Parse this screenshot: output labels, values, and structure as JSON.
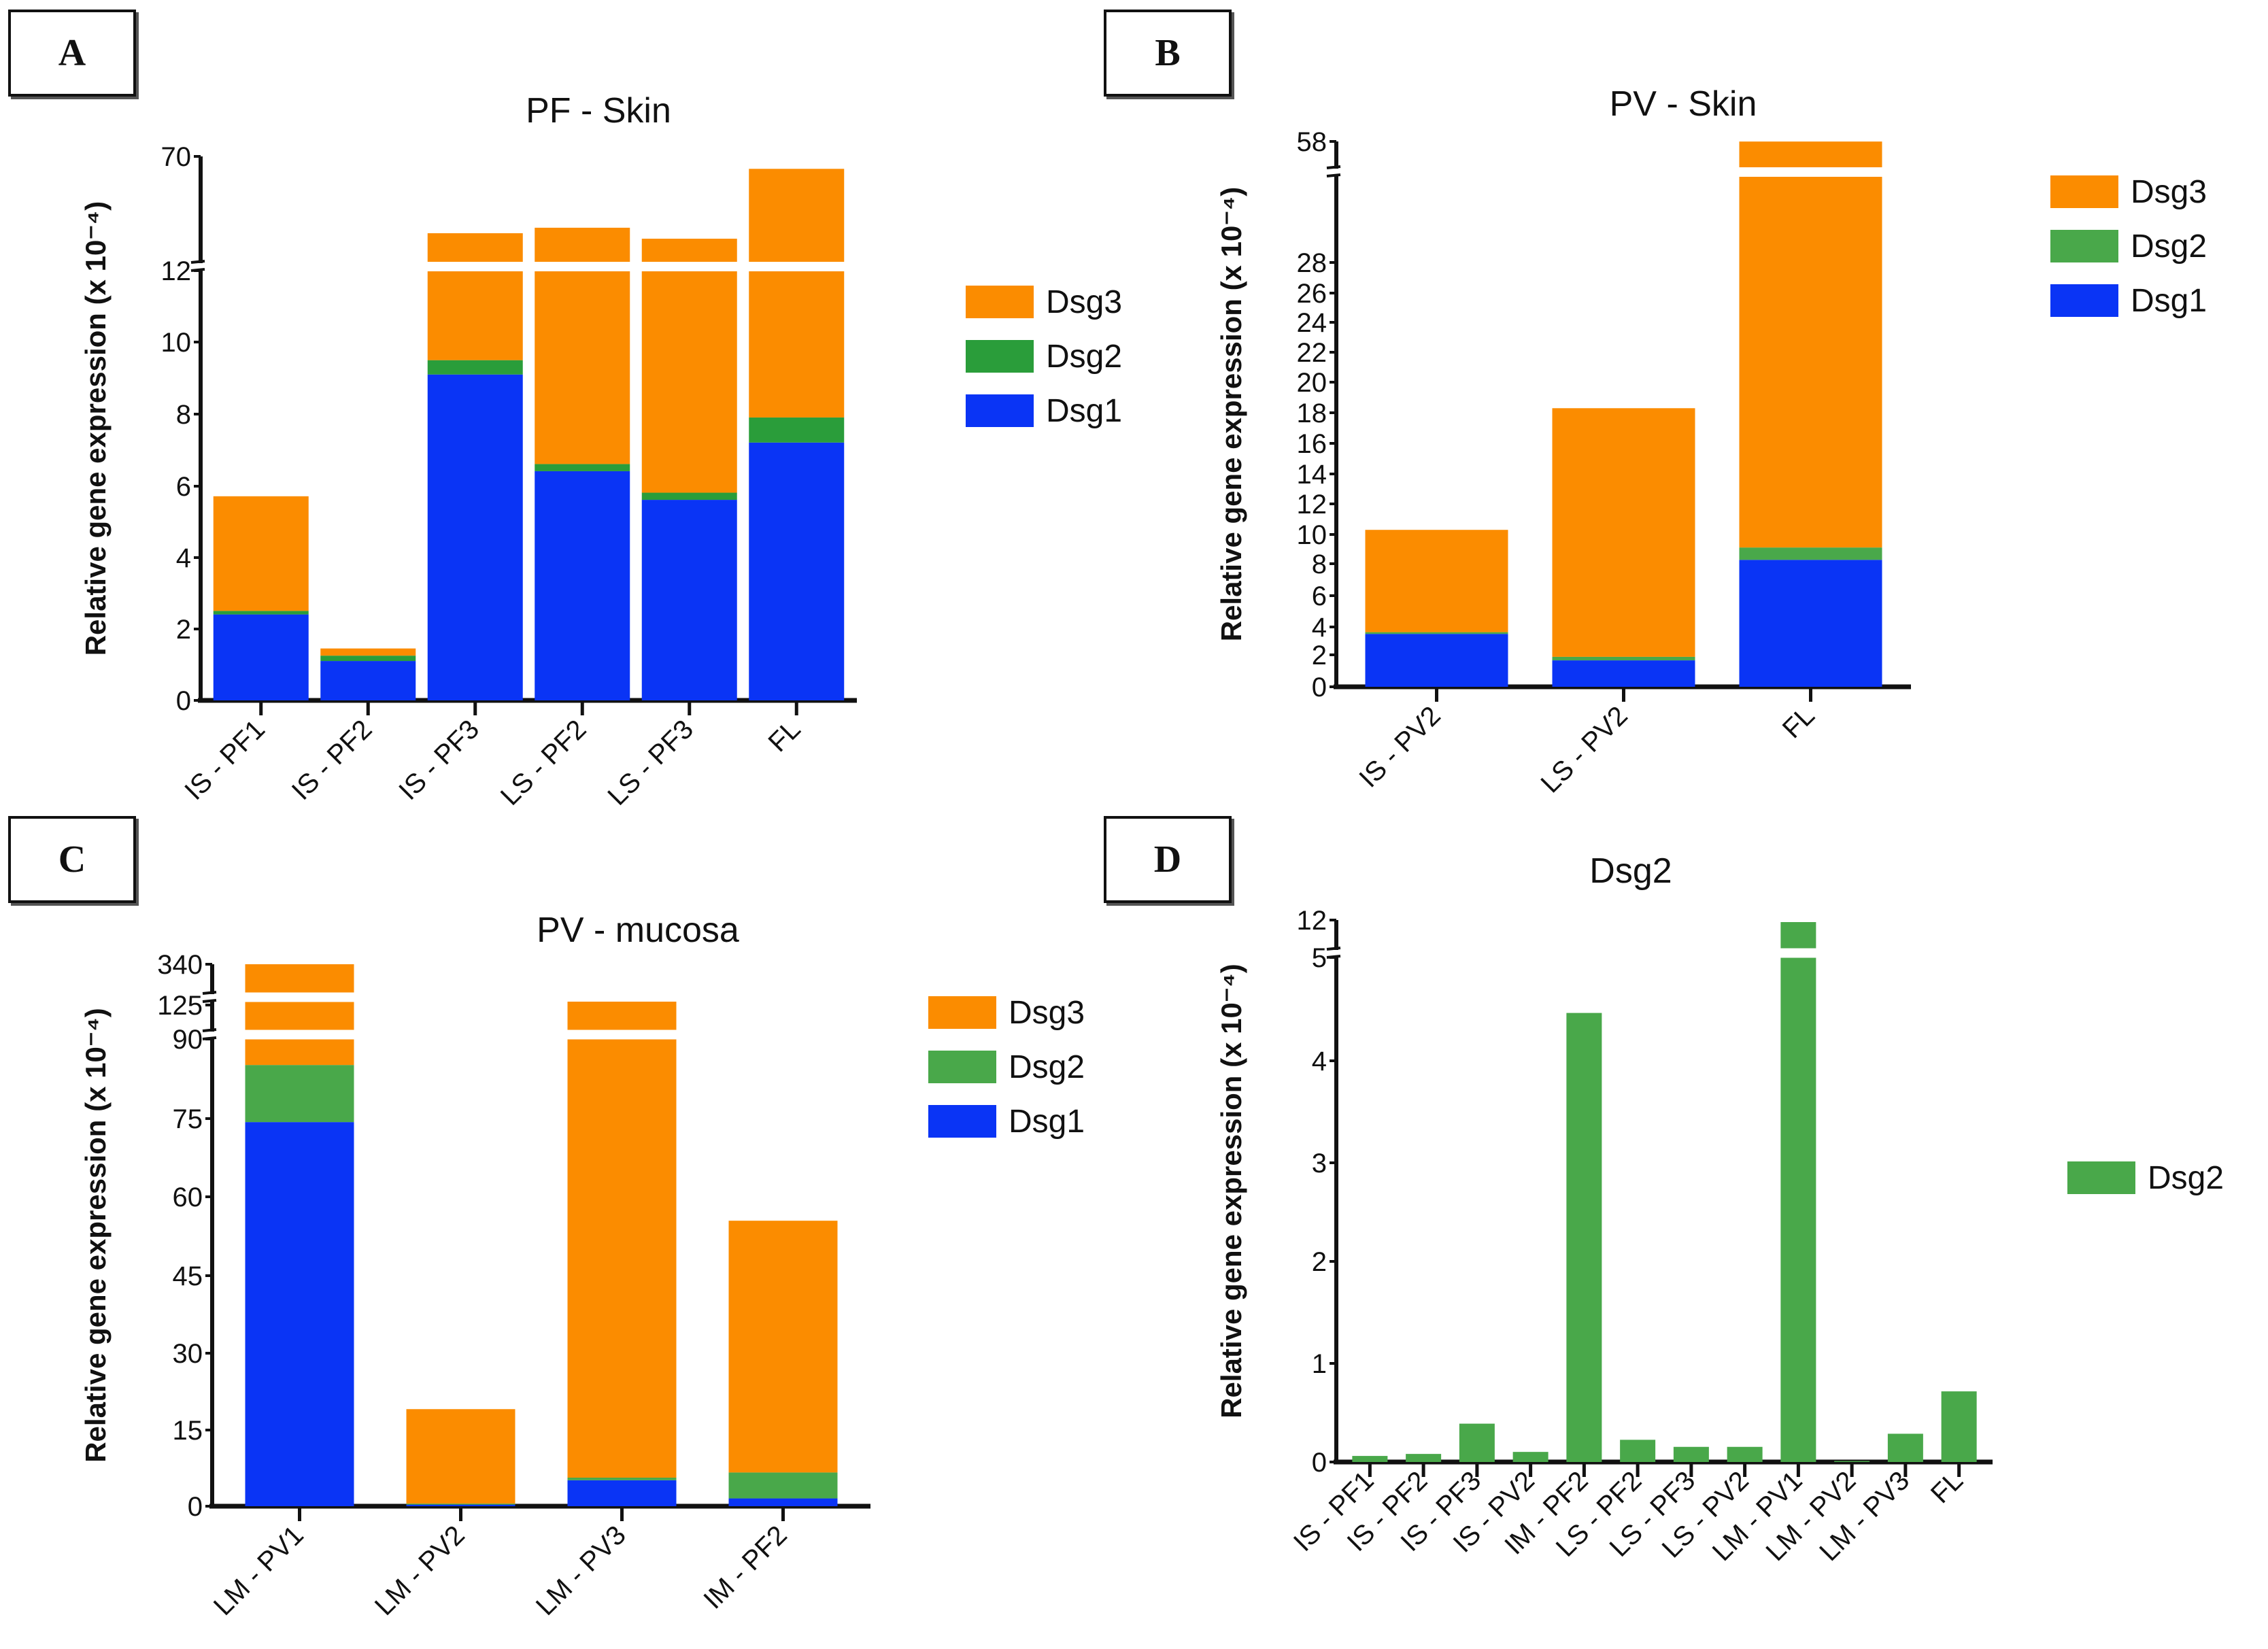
{
  "colors": {
    "Dsg1": "#0a34f5",
    "Dsg2_A": "#2a9d3a",
    "Dsg2": "#49a84a",
    "Dsg3": "#fb8c00"
  },
  "chart_data": [
    {
      "panel": "A",
      "type": "bar",
      "stacked": true,
      "title": "PF - Skin",
      "ylabel": "Relative gene expression (x 10⁻⁴)",
      "xlabel": "",
      "categories": [
        "IS - PF1",
        "IS - PF2",
        "IS - PF3",
        "LS - PF2",
        "LS - PF3",
        "FL"
      ],
      "series": [
        {
          "name": "Dsg1",
          "values": [
            2.4,
            1.1,
            9.1,
            6.4,
            5.6,
            7.2
          ]
        },
        {
          "name": "Dsg2",
          "values": [
            0.1,
            0.15,
            0.4,
            0.2,
            0.2,
            0.7
          ]
        },
        {
          "name": "Dsg3",
          "values": [
            3.2,
            0.2,
            18.5,
            24.4,
            19.2,
            55.3
          ]
        }
      ],
      "totals": [
        5.7,
        1.45,
        28,
        31,
        25,
        63.2
      ],
      "y_ticks": [
        "0",
        "2",
        "4",
        "6",
        "8",
        "10",
        "12",
        "70"
      ],
      "axis_break": {
        "lower": [
          0,
          12
        ],
        "upper": [
          12,
          70
        ]
      },
      "legend": [
        "Dsg3",
        "Dsg2",
        "Dsg1"
      ],
      "legend_position": "right"
    },
    {
      "panel": "B",
      "type": "bar",
      "stacked": true,
      "title": "PV - Skin",
      "ylabel": "Relative gene expression (x 10⁻⁴)",
      "xlabel": "",
      "categories": [
        "IS - PV2",
        "LS - PV2",
        "FL"
      ],
      "series": [
        {
          "name": "Dsg1",
          "values": [
            3.0,
            1.5,
            7.2
          ]
        },
        {
          "name": "Dsg2",
          "values": [
            0.1,
            0.2,
            0.7
          ]
        },
        {
          "name": "Dsg3",
          "values": [
            5.8,
            14.1,
            50.0
          ]
        }
      ],
      "totals": [
        8.9,
        15.8,
        57.9
      ],
      "y_ticks": [
        "0",
        "2",
        "4",
        "6",
        "8",
        "10",
        "12",
        "14",
        "16",
        "18",
        "20",
        "22",
        "24",
        "26",
        "28",
        "58"
      ],
      "axis_break": {
        "lower": [
          0,
          29
        ],
        "upper": [
          29,
          58
        ]
      },
      "legend": [
        "Dsg3",
        "Dsg2",
        "Dsg1"
      ],
      "legend_position": "right"
    },
    {
      "panel": "C",
      "type": "bar",
      "stacked": true,
      "title": "PV - mucosa",
      "ylabel": "Relative gene expression (x 10⁻⁴)",
      "xlabel": "",
      "categories": [
        "LM - PV1",
        "LM - PV2",
        "LM - PV3",
        "IM - PF2"
      ],
      "series": [
        {
          "name": "Dsg1",
          "values": [
            74,
            0.3,
            5,
            1.5
          ]
        },
        {
          "name": "Dsg2",
          "values": [
            11,
            0.2,
            0.5,
            5
          ]
        },
        {
          "name": "Dsg3",
          "values": [
            255,
            18.2,
            119.5,
            48.5
          ]
        }
      ],
      "totals": [
        340,
        18.7,
        125,
        55
      ],
      "y_ticks": [
        "0",
        "15",
        "30",
        "45",
        "60",
        "75",
        "90",
        "125",
        "340"
      ],
      "axis_break": {
        "segments": [
          [
            0,
            90
          ],
          [
            90,
            125
          ],
          [
            125,
            340
          ]
        ]
      },
      "legend": [
        "Dsg3",
        "Dsg2",
        "Dsg1"
      ],
      "legend_position": "right"
    },
    {
      "panel": "D",
      "type": "bar",
      "stacked": false,
      "title": "Dsg2",
      "ylabel": "Relative gene expression (x 10⁻⁴)",
      "xlabel": "",
      "categories": [
        "IS - PF1",
        "IS - PF2",
        "IS - PF3",
        "IS - PV2",
        "IM - PF2",
        "LS - PF2",
        "LS - PF3",
        "LS - PV2",
        "LM - PV1",
        "LM - PV2",
        "LM - PV3",
        "FL"
      ],
      "series": [
        {
          "name": "Dsg2",
          "values": [
            0.06,
            0.08,
            0.38,
            0.1,
            4.45,
            0.22,
            0.15,
            0.15,
            11.5,
            0.01,
            0.28,
            0.7
          ]
        }
      ],
      "y_ticks": [
        "0",
        "1",
        "2",
        "3",
        "4",
        "5",
        "12"
      ],
      "axis_break": {
        "lower": [
          0,
          5
        ],
        "upper": [
          5,
          12
        ]
      },
      "legend": [
        "Dsg2"
      ],
      "legend_position": "right"
    }
  ]
}
